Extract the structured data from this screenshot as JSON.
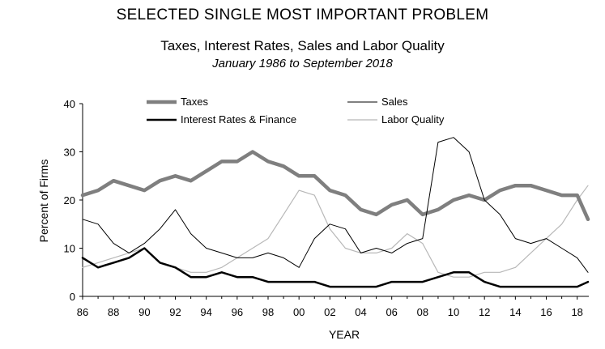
{
  "chart_data": {
    "type": "line",
    "title": "SELECTED SINGLE MOST IMPORTANT PROBLEM",
    "subtitle": "Taxes, Interest Rates, Sales and Labor Quality",
    "subtitle2": "January 1986 to September 2018",
    "xlabel": "YEAR",
    "ylabel": "Percent of Firms",
    "xlim": [
      1986,
      2018.75
    ],
    "ylim": [
      0,
      40
    ],
    "x_ticks": [
      "86",
      "88",
      "90",
      "92",
      "94",
      "96",
      "98",
      "00",
      "02",
      "04",
      "06",
      "08",
      "10",
      "12",
      "14",
      "16",
      "18"
    ],
    "y_ticks": [
      "0",
      "10",
      "20",
      "30",
      "40"
    ],
    "grid": false,
    "legend_position": "top",
    "x": [
      1986,
      1987,
      1988,
      1989,
      1990,
      1991,
      1992,
      1993,
      1994,
      1995,
      1996,
      1997,
      1998,
      1999,
      2000,
      2001,
      2002,
      2003,
      2004,
      2005,
      2006,
      2007,
      2008,
      2009,
      2010,
      2011,
      2012,
      2013,
      2014,
      2015,
      2016,
      2017,
      2018,
      2018.7
    ],
    "series": [
      {
        "name": "Taxes",
        "color": "#7f7f7f",
        "width": 4.5,
        "values": [
          21,
          22,
          24,
          23,
          22,
          24,
          25,
          24,
          26,
          28,
          28,
          30,
          28,
          27,
          25,
          25,
          22,
          21,
          18,
          17,
          19,
          20,
          17,
          18,
          20,
          21,
          20,
          22,
          23,
          23,
          22,
          21,
          21,
          16
        ]
      },
      {
        "name": "Sales",
        "color": "#000000",
        "width": 1,
        "values": [
          16,
          15,
          11,
          9,
          11,
          14,
          18,
          13,
          10,
          9,
          8,
          8,
          9,
          8,
          6,
          12,
          15,
          14,
          9,
          10,
          9,
          11,
          12,
          32,
          33,
          30,
          20,
          17,
          12,
          11,
          12,
          10,
          8,
          5
        ]
      },
      {
        "name": "Interest Rates & Finance",
        "color": "#000000",
        "width": 2.5,
        "values": [
          8,
          6,
          7,
          8,
          10,
          7,
          6,
          4,
          4,
          5,
          4,
          4,
          3,
          3,
          3,
          3,
          2,
          2,
          2,
          2,
          3,
          3,
          3,
          4,
          5,
          5,
          3,
          2,
          2,
          2,
          2,
          2,
          2,
          3
        ]
      },
      {
        "name": "Labor Quality",
        "color": "#b8b8b8",
        "width": 1.2,
        "values": [
          6,
          7,
          8,
          9,
          10,
          7,
          6,
          5,
          5,
          6,
          8,
          10,
          12,
          17,
          22,
          21,
          14,
          10,
          9,
          9,
          10,
          13,
          11,
          5,
          4,
          4,
          5,
          5,
          6,
          9,
          12,
          15,
          20,
          23
        ]
      }
    ]
  }
}
